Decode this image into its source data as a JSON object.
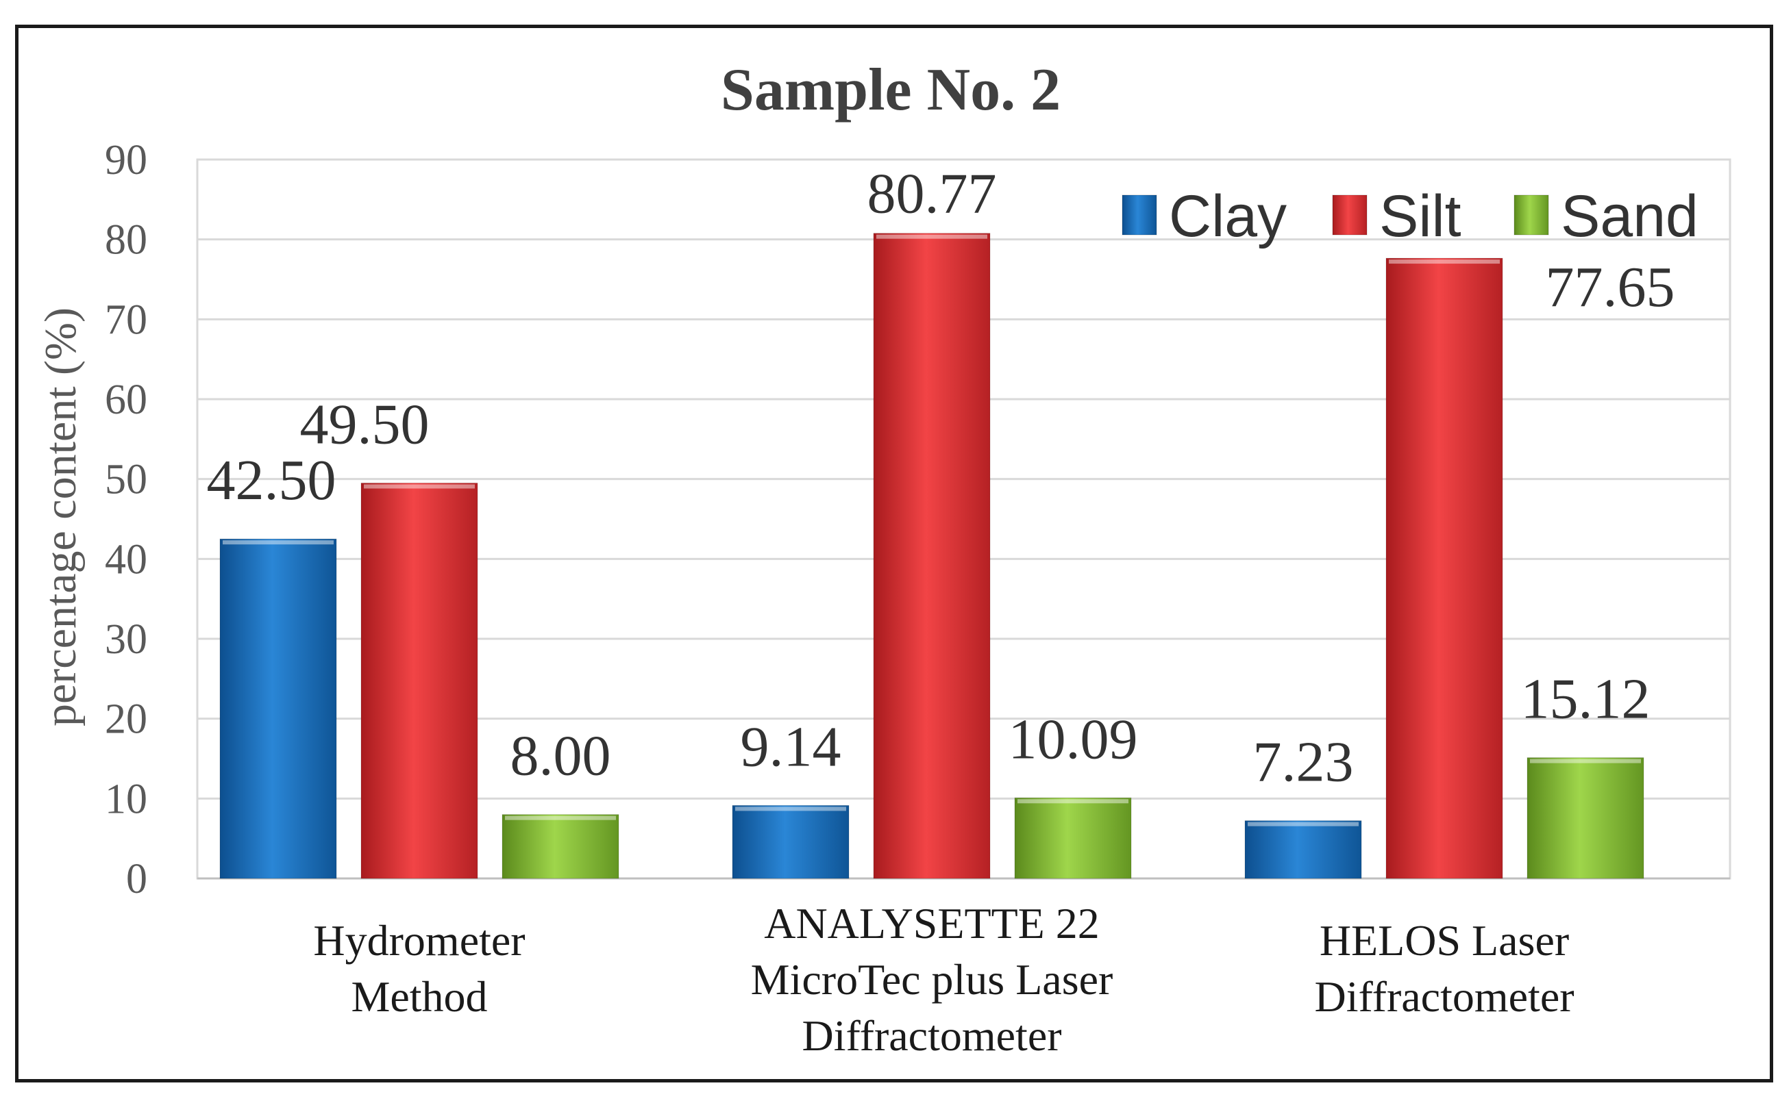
{
  "chart_data": {
    "type": "bar",
    "title": "Sample No. 2",
    "xlabel": "",
    "ylabel": "percentage content (%)",
    "ylim": [
      0,
      90
    ],
    "yticks": [
      0,
      10,
      20,
      30,
      40,
      50,
      60,
      70,
      80,
      90
    ],
    "grid": true,
    "legend_position": "top-right",
    "categories": [
      [
        "Hydrometer",
        "Method"
      ],
      [
        "ANALYSETTE 22",
        "MicroTec plus Laser",
        "Diffractometer"
      ],
      [
        "HELOS Laser",
        "Diffractometer"
      ]
    ],
    "series": [
      {
        "name": "Clay",
        "color": "#1f77c9",
        "values": [
          42.5,
          9.14,
          7.23
        ],
        "labels": [
          "42.50",
          "9.14",
          "7.23"
        ]
      },
      {
        "name": "Silt",
        "color": "#e8383a",
        "values": [
          49.5,
          80.77,
          77.65
        ],
        "labels": [
          "49.50",
          "80.77",
          "77.65"
        ]
      },
      {
        "name": "Sand",
        "color": "#8cc63f",
        "values": [
          8.0,
          10.09,
          15.12
        ],
        "labels": [
          "8.00",
          "10.09",
          "15.12"
        ]
      }
    ]
  }
}
